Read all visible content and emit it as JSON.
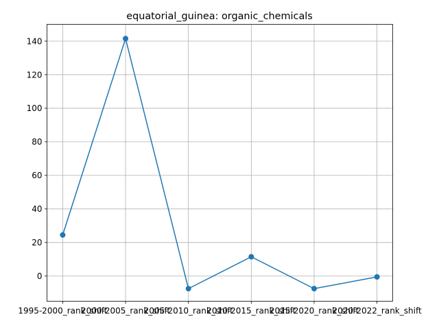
{
  "chart_data": {
    "type": "line",
    "title": "equatorial_guinea: organic_chemicals",
    "xlabel": "",
    "ylabel": "",
    "categories": [
      "1995-2000_rank_shift",
      "2000-2005_rank_shift",
      "2005-2010_rank_shift",
      "2010-2015_rank_shift",
      "2015-2020_rank_shift",
      "2020-2022_rank_shift"
    ],
    "series": [
      {
        "values": [
          24.5,
          141.5,
          -7.5,
          11.5,
          -7.5,
          -0.5
        ]
      }
    ],
    "yticks": [
      0,
      20,
      40,
      60,
      80,
      100,
      120,
      140
    ],
    "ylim": [
      -15,
      150
    ],
    "grid": true,
    "colors": {
      "line": "#1f77b4",
      "marker": "#1f77b4"
    }
  }
}
